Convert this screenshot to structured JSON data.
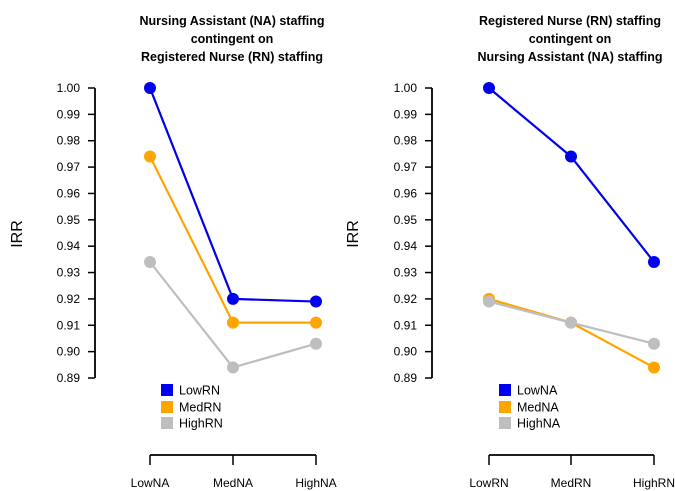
{
  "chart_data": [
    {
      "type": "line",
      "title": [
        "Nursing Assistant (NA) staffing",
        "contingent on",
        "Registered Nurse (RN) staffing"
      ],
      "ylabel": "IRR",
      "xlabel": "",
      "categories": [
        "LowNA",
        "MedNA",
        "HighNA"
      ],
      "ylim": [
        0.89,
        1.0
      ],
      "yticks": [
        "1.00",
        "0.99",
        "0.98",
        "0.97",
        "0.96",
        "0.95",
        "0.94",
        "0.93",
        "0.92",
        "0.91",
        "0.90",
        "0.89"
      ],
      "legend_position": "bottom-left",
      "series": [
        {
          "name": "LowRN",
          "color": "#0000EE",
          "values": [
            1.0,
            0.92,
            0.919
          ]
        },
        {
          "name": "MedRN",
          "color": "#FFA500",
          "values": [
            0.974,
            0.911,
            0.911
          ]
        },
        {
          "name": "HighRN",
          "color": "#BEBEBE",
          "values": [
            0.934,
            0.894,
            0.903
          ]
        }
      ]
    },
    {
      "type": "line",
      "title": [
        "Registered Nurse (RN) staffing",
        "contingent on",
        "Nursing Assistant (NA) staffing"
      ],
      "ylabel": "IRR",
      "xlabel": "",
      "categories": [
        "LowRN",
        "MedRN",
        "HighRN"
      ],
      "ylim": [
        0.89,
        1.0
      ],
      "yticks": [
        "1.00",
        "0.99",
        "0.98",
        "0.97",
        "0.96",
        "0.95",
        "0.94",
        "0.93",
        "0.92",
        "0.91",
        "0.90",
        "0.89"
      ],
      "legend_position": "bottom-left",
      "series": [
        {
          "name": "LowNA",
          "color": "#0000EE",
          "values": [
            1.0,
            0.974,
            0.934
          ]
        },
        {
          "name": "MedNA",
          "color": "#FFA500",
          "values": [
            0.92,
            0.911,
            0.894
          ]
        },
        {
          "name": "HighNA",
          "color": "#BEBEBE",
          "values": [
            0.919,
            0.911,
            0.903
          ]
        }
      ]
    }
  ]
}
